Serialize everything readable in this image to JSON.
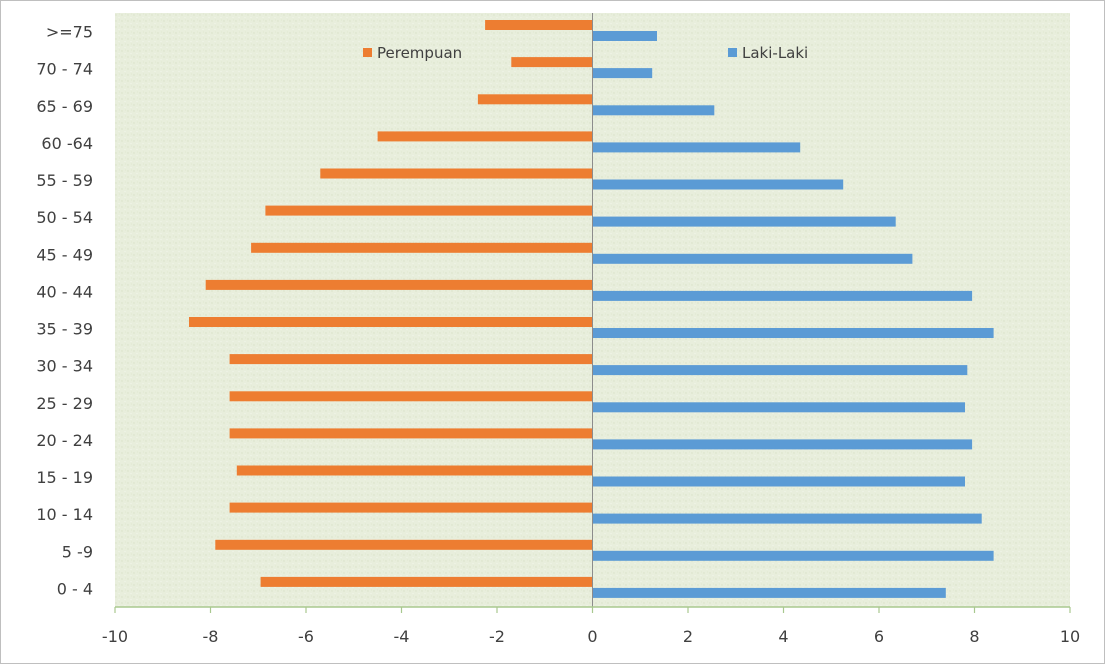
{
  "chart_data": {
    "type": "bar",
    "orientation": "horizontal",
    "title": "",
    "xlabel": "",
    "ylabel": "",
    "categories": [
      "0 - 4",
      "5 -9",
      "10 - 14",
      "15 - 19",
      "20 - 24",
      "25 - 29",
      "30 - 34",
      "35 - 39",
      "40 - 44",
      "45 - 49",
      "50 - 54",
      "55 - 59",
      "60 -64",
      "65 - 69",
      "70 - 74",
      ">=75"
    ],
    "series": [
      {
        "name": "Perempuan",
        "color": "#ed7d31",
        "values": [
          -6.95,
          -7.9,
          -7.6,
          -7.45,
          -7.6,
          -7.6,
          -7.6,
          -8.45,
          -8.1,
          -7.15,
          -6.85,
          -5.7,
          -4.5,
          -2.4,
          -1.7,
          -2.25
        ]
      },
      {
        "name": "Laki-Laki",
        "color": "#5b9bd5",
        "values": [
          7.4,
          8.4,
          8.15,
          7.8,
          7.95,
          7.8,
          7.85,
          8.4,
          7.95,
          6.7,
          6.35,
          5.25,
          4.35,
          2.55,
          1.25,
          1.35
        ]
      }
    ],
    "x_ticks": [
      "-10",
      "-8",
      "-6",
      "-4",
      "-2",
      "0",
      "2",
      "4",
      "6",
      "8",
      "10"
    ],
    "xlim": [
      -10,
      10
    ],
    "grid": false,
    "legend_position": "top-inside"
  }
}
